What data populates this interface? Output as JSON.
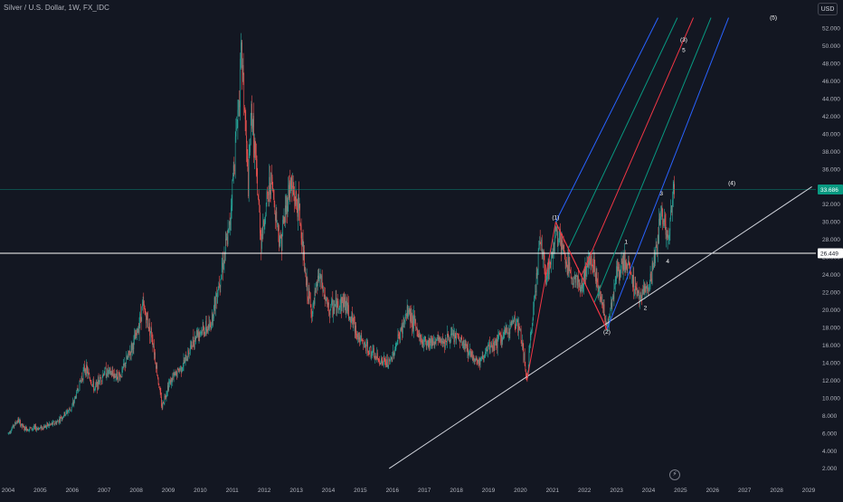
{
  "header": {
    "title": "Silver / U.S. Dollar, 1W, FX_IDC"
  },
  "currency_button": "USD",
  "event_icon": "lightning-icon",
  "event_glyph": "⚡",
  "colors": {
    "background": "#131722",
    "up": "#26a69a",
    "down": "#ef5350",
    "pitchfork_outer": "#2962ff",
    "pitchfork_inner": "#089981",
    "pitchfork_median": "#f23645",
    "wave_lines": "#f23645",
    "trendline": "#d1d4dc",
    "horizontal_line": "#ffffff",
    "current_line": "#089981"
  },
  "chart_data": {
    "type": "candlestick",
    "title": "Silver / U.S. Dollar, 1W, FX_IDC",
    "x_axis": {
      "ticks": [
        "2004",
        "2005",
        "2006",
        "2007",
        "2008",
        "2009",
        "2010",
        "2011",
        "2012",
        "2013",
        "2014",
        "2015",
        "2016",
        "2017",
        "2018",
        "2019",
        "2020",
        "2021",
        "2022",
        "2023",
        "2024",
        "2025",
        "2026",
        "2027",
        "2028",
        "2029"
      ]
    },
    "y_axis": {
      "ticks": [
        "2.000",
        "4.000",
        "6.000",
        "8.000",
        "10.000",
        "12.000",
        "14.000",
        "16.000",
        "18.000",
        "20.000",
        "22.000",
        "24.000",
        "26.000",
        "28.000",
        "30.000",
        "32.000",
        "34.000",
        "36.000",
        "38.000",
        "40.000",
        "42.000",
        "44.000",
        "46.000",
        "48.000",
        "50.000",
        "52.000"
      ],
      "range": [
        0,
        53.2
      ]
    },
    "price_series": [
      [
        2004.0,
        6.0
      ],
      [
        2004.3,
        7.5
      ],
      [
        2004.5,
        6.5
      ],
      [
        2005.0,
        6.6
      ],
      [
        2005.5,
        7.2
      ],
      [
        2006.0,
        9.0
      ],
      [
        2006.4,
        13.5
      ],
      [
        2006.7,
        11.0
      ],
      [
        2007.0,
        13.0
      ],
      [
        2007.5,
        12.5
      ],
      [
        2008.0,
        17.0
      ],
      [
        2008.2,
        20.5
      ],
      [
        2008.5,
        17.0
      ],
      [
        2008.8,
        9.0
      ],
      [
        2009.0,
        11.5
      ],
      [
        2009.5,
        14.0
      ],
      [
        2009.9,
        17.5
      ],
      [
        2010.3,
        18.0
      ],
      [
        2010.9,
        29.0
      ],
      [
        2011.3,
        49.0
      ],
      [
        2011.5,
        34.0
      ],
      [
        2011.6,
        43.0
      ],
      [
        2011.9,
        28.0
      ],
      [
        2012.2,
        35.0
      ],
      [
        2012.5,
        27.5
      ],
      [
        2012.8,
        34.5
      ],
      [
        2013.1,
        31.0
      ],
      [
        2013.3,
        23.0
      ],
      [
        2013.5,
        19.5
      ],
      [
        2013.7,
        24.0
      ],
      [
        2014.0,
        20.0
      ],
      [
        2014.5,
        21.0
      ],
      [
        2015.0,
        16.5
      ],
      [
        2015.5,
        14.5
      ],
      [
        2015.9,
        13.8
      ],
      [
        2016.5,
        20.0
      ],
      [
        2016.9,
        16.5
      ],
      [
        2017.5,
        16.5
      ],
      [
        2018.0,
        17.0
      ],
      [
        2018.7,
        14.0
      ],
      [
        2019.0,
        15.5
      ],
      [
        2019.6,
        17.5
      ],
      [
        2019.8,
        19.0
      ],
      [
        2020.0,
        17.5
      ],
      [
        2020.2,
        12.0
      ],
      [
        2020.6,
        28.0
      ],
      [
        2020.8,
        24.0
      ],
      [
        2021.0,
        26.0
      ],
      [
        2021.1,
        29.5
      ],
      [
        2021.5,
        24.5
      ],
      [
        2021.9,
        22.5
      ],
      [
        2022.2,
        26.5
      ],
      [
        2022.7,
        18.0
      ],
      [
        2023.0,
        24.0
      ],
      [
        2023.3,
        25.5
      ],
      [
        2023.7,
        21.5
      ],
      [
        2023.9,
        22.5
      ],
      [
        2024.0,
        22.0
      ],
      [
        2024.3,
        28.0
      ],
      [
        2024.4,
        32.0
      ],
      [
        2024.6,
        27.5
      ],
      [
        2024.8,
        34.0
      ]
    ],
    "reference_prices": {
      "horizontal_line": {
        "value": 26.449,
        "label": "26.449"
      },
      "current_price": {
        "value": 33.686,
        "label": "33.686"
      }
    },
    "wave_labels": [
      {
        "text": "(1)",
        "x": 2021.1,
        "y": 30.3
      },
      {
        "text": "(2)",
        "x": 2022.7,
        "y": 17.3
      },
      {
        "text": "1",
        "x": 2023.3,
        "y": 27.5
      },
      {
        "text": "2",
        "x": 2023.9,
        "y": 20.0
      },
      {
        "text": "3",
        "x": 2024.4,
        "y": 33.0
      },
      {
        "text": "4",
        "x": 2024.6,
        "y": 25.3
      },
      {
        "text": "(3)",
        "x": 2025.1,
        "y": 50.5
      },
      {
        "text": "5",
        "x": 2025.1,
        "y": 49.3
      },
      {
        "text": "(4)",
        "x": 2026.6,
        "y": 34.2
      },
      {
        "text": "(5)",
        "x": 2027.9,
        "y": 53.0
      }
    ],
    "wave_lines": [
      [
        [
          2020.2,
          12.0
        ],
        [
          2021.1,
          30.0
        ]
      ],
      [
        [
          2021.1,
          30.0
        ],
        [
          2022.7,
          17.8
        ]
      ],
      [
        [
          2022.7,
          17.8
        ],
        [
          2021.1,
          30.0
        ]
      ]
    ],
    "pitchfork": {
      "pivots": [
        [
          2020.2,
          12.0
        ],
        [
          2021.1,
          30.0
        ],
        [
          2022.7,
          17.8
        ]
      ],
      "lines": [
        {
          "role": "outer",
          "from": [
            2021.1,
            30.0
          ],
          "to": [
            2024.3,
            53.2
          ]
        },
        {
          "role": "inner",
          "from": [
            2021.5,
            27.0
          ],
          "to": [
            2024.9,
            53.2
          ]
        },
        {
          "role": "median",
          "from": [
            2021.9,
            23.9
          ],
          "to": [
            2025.4,
            53.2
          ]
        },
        {
          "role": "inner",
          "from": [
            2022.3,
            20.8
          ],
          "to": [
            2025.95,
            53.2
          ]
        },
        {
          "role": "outer",
          "from": [
            2022.7,
            17.8
          ],
          "to": [
            2026.5,
            53.2
          ]
        }
      ]
    },
    "trendline": {
      "from": [
        2015.9,
        2.0
      ],
      "to": [
        2029.1,
        34.0
      ]
    },
    "grid": false,
    "legend": "none"
  }
}
